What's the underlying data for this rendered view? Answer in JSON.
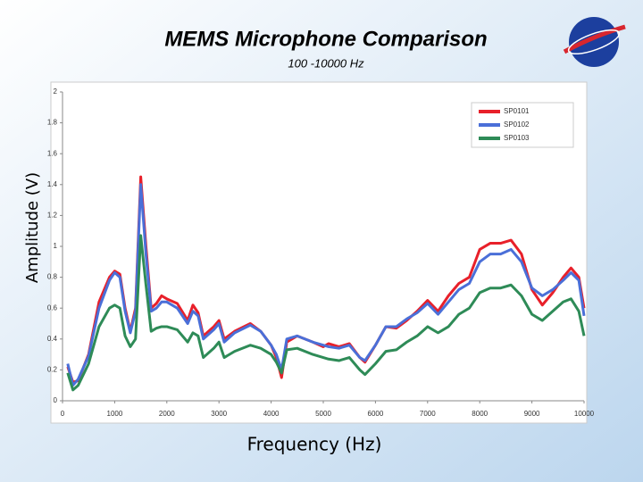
{
  "chart_data": {
    "type": "line",
    "title": "MEMS Microphone Comparison",
    "subtitle": "100 -10000 Hz",
    "x_label": "Frequency (Hz)",
    "y_label": "Amplitude (V)",
    "xlim": [
      0,
      10000
    ],
    "ylim": [
      0,
      2
    ],
    "xticks": [
      0,
      1000,
      2000,
      3000,
      4000,
      5000,
      6000,
      7000,
      8000,
      9000,
      10000
    ],
    "yticks": [
      0,
      0.2,
      0.4,
      0.6,
      0.8,
      1,
      1.2,
      1.4,
      1.6,
      1.8,
      2
    ],
    "grid": false,
    "legend": "top-right",
    "x": [
      100,
      200,
      300,
      500,
      700,
      900,
      1000,
      1100,
      1200,
      1300,
      1400,
      1500,
      1600,
      1700,
      1800,
      1900,
      2000,
      2200,
      2400,
      2500,
      2600,
      2700,
      2900,
      3000,
      3100,
      3300,
      3600,
      3800,
      4000,
      4100,
      4200,
      4300,
      4500,
      4800,
      5000,
      5100,
      5300,
      5500,
      5700,
      5800,
      6000,
      6200,
      6400,
      6600,
      6800,
      7000,
      7200,
      7400,
      7600,
      7800,
      8000,
      8200,
      8400,
      8600,
      8800,
      9000,
      9200,
      9400,
      9600,
      9750,
      9900,
      10000
    ],
    "series": [
      {
        "name": "SP0101",
        "color": "#e8202a",
        "values": [
          0.22,
          0.12,
          0.13,
          0.3,
          0.64,
          0.8,
          0.84,
          0.82,
          0.6,
          0.45,
          0.6,
          1.45,
          1.0,
          0.6,
          0.63,
          0.68,
          0.66,
          0.63,
          0.52,
          0.62,
          0.57,
          0.42,
          0.48,
          0.52,
          0.4,
          0.45,
          0.5,
          0.45,
          0.36,
          0.28,
          0.15,
          0.38,
          0.42,
          0.38,
          0.35,
          0.37,
          0.35,
          0.37,
          0.28,
          0.25,
          0.36,
          0.48,
          0.47,
          0.52,
          0.58,
          0.65,
          0.58,
          0.68,
          0.76,
          0.8,
          0.98,
          1.02,
          1.02,
          1.04,
          0.95,
          0.72,
          0.62,
          0.7,
          0.8,
          0.86,
          0.8,
          0.6
        ]
      },
      {
        "name": "SP0102",
        "color": "#4a6fd8",
        "values": [
          0.24,
          0.1,
          0.14,
          0.29,
          0.6,
          0.78,
          0.83,
          0.8,
          0.58,
          0.44,
          0.58,
          1.4,
          0.95,
          0.58,
          0.6,
          0.64,
          0.64,
          0.6,
          0.5,
          0.58,
          0.55,
          0.4,
          0.46,
          0.5,
          0.38,
          0.44,
          0.49,
          0.45,
          0.36,
          0.3,
          0.2,
          0.4,
          0.42,
          0.38,
          0.36,
          0.35,
          0.34,
          0.36,
          0.28,
          0.26,
          0.36,
          0.48,
          0.48,
          0.53,
          0.57,
          0.63,
          0.56,
          0.64,
          0.72,
          0.76,
          0.9,
          0.95,
          0.95,
          0.98,
          0.9,
          0.73,
          0.68,
          0.72,
          0.78,
          0.83,
          0.78,
          0.55
        ]
      },
      {
        "name": "SP0103",
        "color": "#2e8b57",
        "values": [
          0.18,
          0.07,
          0.1,
          0.24,
          0.48,
          0.6,
          0.62,
          0.6,
          0.42,
          0.35,
          0.4,
          1.07,
          0.75,
          0.45,
          0.47,
          0.48,
          0.48,
          0.46,
          0.38,
          0.44,
          0.42,
          0.28,
          0.34,
          0.38,
          0.28,
          0.32,
          0.36,
          0.34,
          0.3,
          0.25,
          0.18,
          0.33,
          0.34,
          0.3,
          0.28,
          0.27,
          0.26,
          0.28,
          0.2,
          0.17,
          0.24,
          0.32,
          0.33,
          0.38,
          0.42,
          0.48,
          0.44,
          0.48,
          0.56,
          0.6,
          0.7,
          0.73,
          0.73,
          0.75,
          0.68,
          0.56,
          0.52,
          0.58,
          0.64,
          0.66,
          0.58,
          0.42
        ]
      }
    ]
  }
}
